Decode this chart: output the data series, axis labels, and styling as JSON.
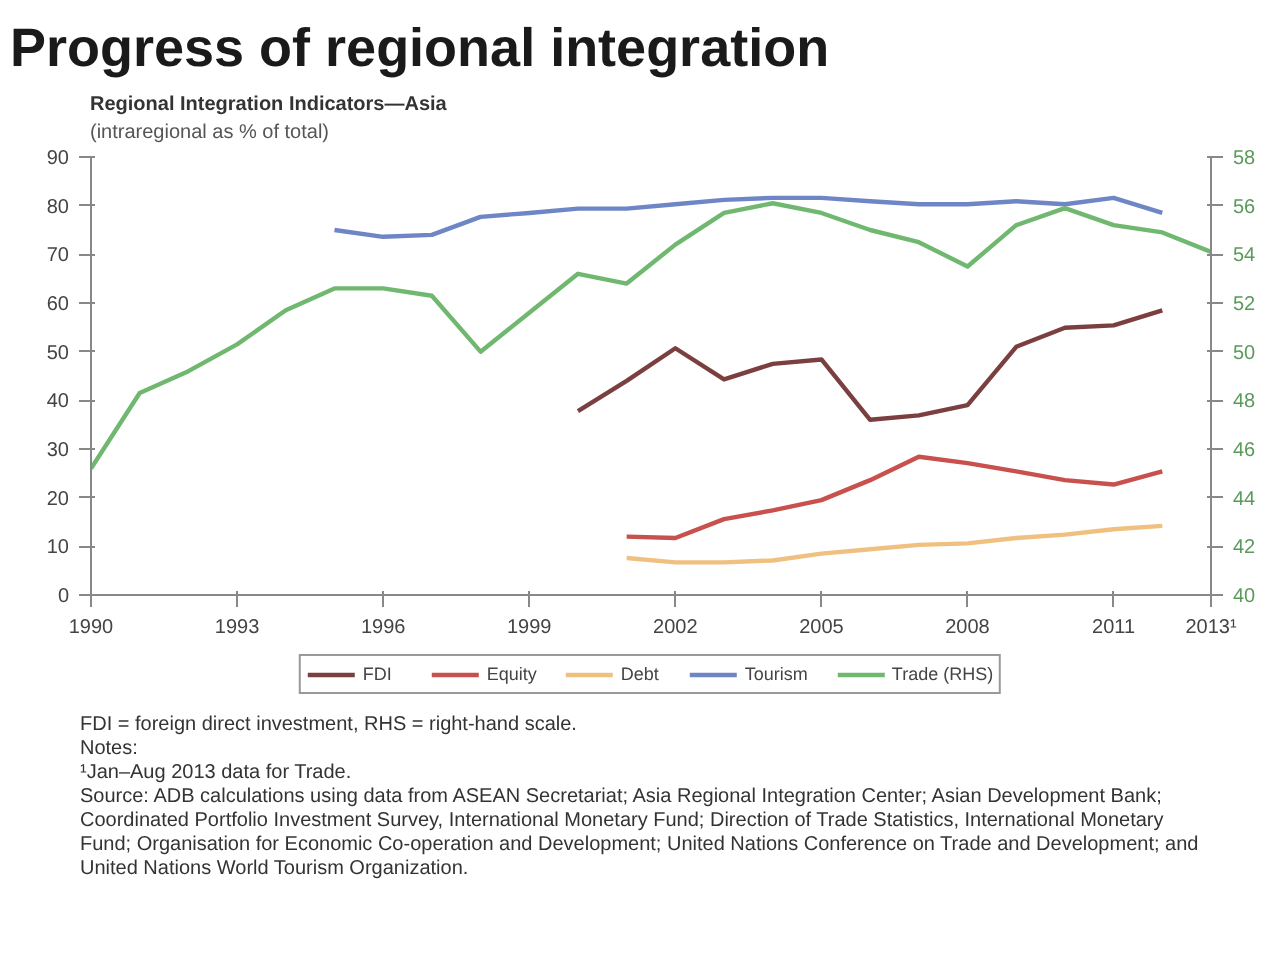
{
  "chart_data": {
    "type": "line",
    "title": "Progress of regional integration",
    "subtitle": "Regional Integration Indicators—Asia\n(intraregional as % of total)",
    "xlim": [
      1990,
      2013
    ],
    "xticks": [
      1990,
      1993,
      1996,
      1999,
      2002,
      2005,
      2008,
      2011,
      {
        "value": 2013,
        "label": "2013¹"
      }
    ],
    "ylim": [
      0,
      90
    ],
    "yticks": [
      0,
      10,
      20,
      30,
      40,
      50,
      60,
      70,
      80,
      90
    ],
    "y2lim": [
      40,
      58
    ],
    "y2ticks": [
      40,
      42,
      44,
      46,
      48,
      50,
      52,
      54,
      56,
      58
    ],
    "grid": false,
    "legend": "bottom",
    "marker": "none",
    "line_style": "solid",
    "series": [
      {
        "name": "FDI",
        "color": "#7b3f3f",
        "x": [
          2000,
          2001,
          2002,
          2003,
          2004,
          2005,
          2006,
          2007,
          2008,
          2009,
          2010,
          2011,
          2012
        ],
        "values": [
          37.8,
          44,
          50.7,
          44.3,
          47.5,
          48.4,
          36,
          36.9,
          39,
          51,
          54.9,
          55.4,
          58.5
        ]
      },
      {
        "name": "Equity",
        "color": "#c8504d",
        "x": [
          2001,
          2002,
          2003,
          2004,
          2005,
          2006,
          2007,
          2008,
          2009,
          2010,
          2011,
          2012
        ],
        "values": [
          12,
          11.7,
          15.6,
          17.4,
          19.5,
          23.6,
          28.4,
          27.1,
          25.4,
          23.6,
          22.7,
          25.4
        ]
      },
      {
        "name": "Debt",
        "color": "#f0c080",
        "x": [
          2001,
          2002,
          2003,
          2004,
          2005,
          2006,
          2007,
          2008,
          2009,
          2010,
          2011,
          2012
        ],
        "values": [
          7.6,
          6.7,
          6.7,
          7.1,
          8.5,
          9.4,
          10.3,
          10.6,
          11.7,
          12.4,
          13.5,
          14.2
        ]
      },
      {
        "name": "Tourism",
        "color": "#6f86c6",
        "x": [
          1995,
          1996,
          1997,
          1998,
          1999,
          2000,
          2001,
          2002,
          2003,
          2004,
          2005,
          2006,
          2007,
          2008,
          2009,
          2010,
          2011,
          2012
        ],
        "values": [
          75,
          73.6,
          74,
          77.7,
          78.5,
          79.4,
          79.4,
          80.3,
          81.2,
          81.6,
          81.6,
          80.9,
          80.3,
          80.3,
          80.9,
          80.3,
          81.6,
          78.5
        ]
      },
      {
        "name": "Trade (RHS)",
        "color": "#70b870",
        "axis": "y2",
        "x": [
          1990,
          1991,
          1992,
          1993,
          1994,
          1995,
          1996,
          1997,
          1998,
          1999,
          2000,
          2001,
          2002,
          2003,
          2004,
          2005,
          2006,
          2007,
          2008,
          2009,
          2010,
          2011,
          2012,
          2013
        ],
        "values": [
          45.2,
          48.3,
          49.2,
          50.3,
          51.7,
          52.6,
          52.6,
          52.3,
          50,
          51.6,
          53.2,
          52.8,
          54.4,
          55.7,
          56.1,
          55.7,
          55,
          54.5,
          53.5,
          55.2,
          55.9,
          55.2,
          54.9,
          54.1
        ]
      }
    ],
    "annotations": [
      "FDI = foreign direct investment, RHS = right-hand scale.",
      "Notes:",
      "¹Jan–Aug 2013 data for Trade.",
      "Source: ADB calculations using data from ASEAN Secretariat; Asia Regional Integration Center; Asian Development Bank; Coordinated Portfolio Investment Survey, International Monetary Fund; Direction of Trade Statistics, International Monetary Fund; Organisation for Economic Co-operation and Development; United Nations Conference on Trade and Development; and United Nations World Tourism Organization."
    ]
  }
}
